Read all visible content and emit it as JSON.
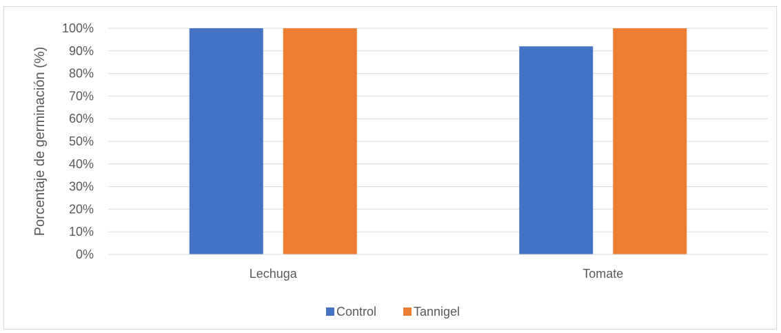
{
  "chart_data": {
    "type": "bar",
    "categories": [
      "Lechuga",
      "Tomate"
    ],
    "series": [
      {
        "name": "Control",
        "values": [
          100,
          92
        ],
        "color": "#4472C4"
      },
      {
        "name": "Tannigel",
        "values": [
          100,
          100
        ],
        "color": "#ED7D31"
      }
    ],
    "ylabel": "Porcentaje de germinación (%)",
    "xlabel": "",
    "ylim": [
      0,
      100
    ],
    "yticks": [
      "0%",
      "10%",
      "20%",
      "30%",
      "40%",
      "50%",
      "60%",
      "70%",
      "80%",
      "90%",
      "100%"
    ],
    "grid": true,
    "legend_position": "bottom"
  }
}
